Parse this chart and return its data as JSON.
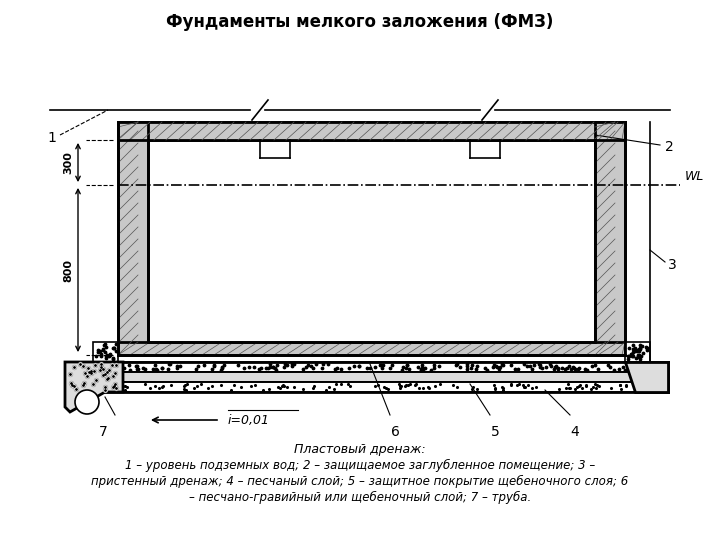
{
  "title": "Фундаменты мелкого заложения (ФМЗ)",
  "title_fontsize": 12,
  "caption_title": "Пластовый дренаж:",
  "caption_line1": "1 – уровень подземных вод; 2 – защищаемое заглубленное помещение; 3 –",
  "caption_line2": "пристенный дренаж; 4 – песчаный слой; 5 – защитное покрытие щебеночного слоя; 6",
  "caption_line3": "– песчано-гравийный или щебеночный слой; 7 – труба.",
  "background_color": "#ffffff",
  "line_color": "#000000",
  "label_1": "1",
  "label_2": "2",
  "label_3": "3",
  "label_4": "4",
  "label_5": "5",
  "label_6": "6",
  "label_7": "7",
  "label_WL": "WL",
  "label_300": "300",
  "label_800": "800",
  "label_slope": "i=0,01"
}
